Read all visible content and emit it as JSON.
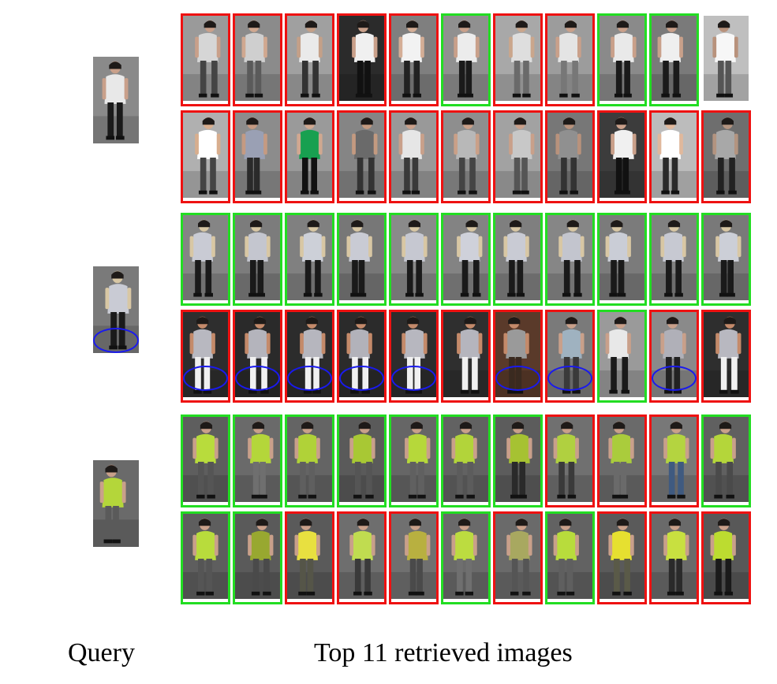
{
  "captions": {
    "query": "Query",
    "results": "Top 11 retrieved images"
  },
  "colors": {
    "correct": "#22dd22",
    "incorrect": "#ee1111",
    "highlight": "#1a1aee"
  },
  "queries": [
    {
      "name": "query-woman-white-dress",
      "palette": [
        "#8a8a8a",
        "#e8e8e8",
        "#1a1a1a",
        "#c9a08a"
      ],
      "ellipse": false,
      "rows": [
        {
          "results": [
            {
              "match": false,
              "palette": [
                "#9a9a9a",
                "#d6d6d6",
                "#444444",
                "#c9a08a"
              ]
            },
            {
              "match": false,
              "palette": [
                "#8b8b8b",
                "#cfcfcf",
                "#5a5a5a",
                "#d0a890"
              ]
            },
            {
              "match": false,
              "palette": [
                "#a0a0a0",
                "#eaeaea",
                "#333333",
                "#c4a088"
              ]
            },
            {
              "match": false,
              "palette": [
                "#2b2b2b",
                "#f0f0f0",
                "#111111",
                "#c9a08a"
              ]
            },
            {
              "match": false,
              "palette": [
                "#7f7f7f",
                "#f2f2f2",
                "#222222",
                "#d4ae96"
              ]
            },
            {
              "match": true,
              "palette": [
                "#909090",
                "#ececec",
                "#1a1a1a",
                "#c9a08a"
              ]
            },
            {
              "match": false,
              "palette": [
                "#a8a8a8",
                "#dedede",
                "#6a6a6a",
                "#caa68c"
              ]
            },
            {
              "match": false,
              "palette": [
                "#9c9c9c",
                "#e4e4e4",
                "#777777",
                "#c9a08a"
              ]
            },
            {
              "match": true,
              "palette": [
                "#8a8a8a",
                "#e9e9e9",
                "#1a1a1a",
                "#c9a08a"
              ]
            },
            {
              "match": true,
              "palette": [
                "#7a7a7a",
                "#efefef",
                "#1b1b1b",
                "#c9a08a"
              ]
            },
            {
              "match": null,
              "palette": [
                "#bfbfbf",
                "#f7f7f7",
                "#555555",
                "#b8927c"
              ]
            }
          ]
        },
        {
          "results": [
            {
              "match": false,
              "palette": [
                "#b0b0b0",
                "#ffffff",
                "#444444",
                "#d8ae8e"
              ]
            },
            {
              "match": false,
              "palette": [
                "#8c8c8c",
                "#9aa0b4",
                "#2a2a2a",
                "#c49a82"
              ]
            },
            {
              "match": false,
              "palette": [
                "#9a9a9a",
                "#18a050",
                "#111111",
                "#d0a890"
              ]
            },
            {
              "match": false,
              "palette": [
                "#858585",
                "#6a6a6a",
                "#333333",
                "#c39a80"
              ]
            },
            {
              "match": false,
              "palette": [
                "#999999",
                "#e6e6e6",
                "#3a3a3a",
                "#c9a08a"
              ]
            },
            {
              "match": false,
              "palette": [
                "#8e8e8e",
                "#b8b8b8",
                "#444444",
                "#caa088"
              ]
            },
            {
              "match": false,
              "palette": [
                "#a2a2a2",
                "#c8c8c8",
                "#555555",
                "#c9a08a"
              ]
            },
            {
              "match": false,
              "palette": [
                "#777777",
                "#909090",
                "#333333",
                "#b8927c"
              ]
            },
            {
              "match": false,
              "palette": [
                "#3c3c3c",
                "#f0f0f0",
                "#111111",
                "#c9a08a"
              ]
            },
            {
              "match": false,
              "palette": [
                "#bcbcbc",
                "#ffffff",
                "#2a2a2a",
                "#e0b89c"
              ]
            },
            {
              "match": false,
              "palette": [
                "#6e6e6e",
                "#a8a8a8",
                "#222222",
                "#b39480"
              ]
            }
          ]
        }
      ]
    },
    {
      "name": "query-woman-floral-dress-hat",
      "palette": [
        "#7a7a7a",
        "#c9cbd4",
        "#1a1a1a",
        "#d8c7a4"
      ],
      "ellipse": true,
      "rows": [
        {
          "results": [
            {
              "match": true,
              "palette": [
                "#858585",
                "#c9cbd4",
                "#1a1a1a",
                "#d8c7a4"
              ],
              "ellipse": false
            },
            {
              "match": true,
              "palette": [
                "#7c7c7c",
                "#c4c6cf",
                "#1a1a1a",
                "#d8c7a4"
              ],
              "ellipse": false
            },
            {
              "match": true,
              "palette": [
                "#808080",
                "#cdd0d8",
                "#1a1a1a",
                "#d8c7a4"
              ],
              "ellipse": false
            },
            {
              "match": true,
              "palette": [
                "#777777",
                "#c9cbd4",
                "#1a1a1a",
                "#d8c7a4"
              ],
              "ellipse": false
            },
            {
              "match": true,
              "palette": [
                "#8a8a8a",
                "#c6c8d1",
                "#1a1a1a",
                "#d8c7a4"
              ],
              "ellipse": false
            },
            {
              "match": true,
              "palette": [
                "#838383",
                "#cfd1da",
                "#1a1a1a",
                "#d8c7a4"
              ],
              "ellipse": false
            },
            {
              "match": true,
              "palette": [
                "#7f7f7f",
                "#c9cbd4",
                "#1a1a1a",
                "#d8c7a4"
              ],
              "ellipse": false
            },
            {
              "match": true,
              "palette": [
                "#868686",
                "#c3c5ce",
                "#1a1a1a",
                "#d8c7a4"
              ],
              "ellipse": false
            },
            {
              "match": true,
              "palette": [
                "#7b7b7b",
                "#cacdd6",
                "#1a1a1a",
                "#d8c7a4"
              ],
              "ellipse": false
            },
            {
              "match": true,
              "palette": [
                "#818181",
                "#c7c9d2",
                "#1a1a1a",
                "#d8c7a4"
              ],
              "ellipse": false
            },
            {
              "match": true,
              "palette": [
                "#797979",
                "#cccfd7",
                "#1a1a1a",
                "#d8c7a4"
              ],
              "ellipse": false
            }
          ]
        },
        {
          "results": [
            {
              "match": false,
              "palette": [
                "#2e2e2e",
                "#b8b8c0",
                "#f0f0f0",
                "#c48a6a"
              ],
              "ellipse": true
            },
            {
              "match": false,
              "palette": [
                "#2a2a2a",
                "#b4b4bc",
                "#f0f0f0",
                "#c48a6a"
              ],
              "ellipse": true
            },
            {
              "match": false,
              "palette": [
                "#2c2c2c",
                "#b6b6be",
                "#f0f0f0",
                "#c48a6a"
              ],
              "ellipse": true
            },
            {
              "match": false,
              "palette": [
                "#2b2b2b",
                "#b2b2ba",
                "#f0f0f0",
                "#c48a6a"
              ],
              "ellipse": true
            },
            {
              "match": false,
              "palette": [
                "#2d2d2d",
                "#b7b7bf",
                "#f0f0f0",
                "#c48a6a"
              ],
              "ellipse": true
            },
            {
              "match": false,
              "palette": [
                "#2f2f2f",
                "#b5b5bd",
                "#f0f0f0",
                "#c48a6a"
              ],
              "ellipse": false
            },
            {
              "match": false,
              "palette": [
                "#5a3a2a",
                "#9a9a9a",
                "#3a2a20",
                "#c48a6a"
              ],
              "ellipse": true
            },
            {
              "match": false,
              "palette": [
                "#7a7a7a",
                "#9fb2c0",
                "#3a3a3a",
                "#c9a08a"
              ],
              "ellipse": true
            },
            {
              "match": true,
              "palette": [
                "#9a9a9a",
                "#e8e8e8",
                "#1a1a1a",
                "#c9a08a"
              ],
              "ellipse": false
            },
            {
              "match": false,
              "palette": [
                "#8a8a8a",
                "#b0b0b8",
                "#222222",
                "#c9a08a"
              ],
              "ellipse": true
            },
            {
              "match": false,
              "palette": [
                "#2e2e2e",
                "#b8b8c0",
                "#f0f0f0",
                "#c48a6a"
              ],
              "ellipse": false
            }
          ]
        }
      ]
    },
    {
      "name": "query-man-green-shirt-bike",
      "palette": [
        "#6a6a6a",
        "#b4d63a",
        "#5a5a5a",
        "#c9a08a"
      ],
      "ellipse": false,
      "rows": [
        {
          "results": [
            {
              "match": true,
              "palette": [
                "#5e5e5e",
                "#b8dc3c",
                "#555555",
                "#c9a08a"
              ]
            },
            {
              "match": true,
              "palette": [
                "#6a6a6a",
                "#b4d63a",
                "#6f6f6f",
                "#c9a08a"
              ]
            },
            {
              "match": true,
              "palette": [
                "#646464",
                "#b0d238",
                "#5f5f5f",
                "#c9a08a"
              ]
            },
            {
              "match": true,
              "palette": [
                "#5a5a5a",
                "#a8c834",
                "#555555",
                "#c9a08a"
              ]
            },
            {
              "match": true,
              "palette": [
                "#666666",
                "#b6d83a",
                "#606060",
                "#c9a08a"
              ]
            },
            {
              "match": true,
              "palette": [
                "#626262",
                "#b2d43a",
                "#5c5c5c",
                "#c9a08a"
              ]
            },
            {
              "match": true,
              "palette": [
                "#5c5c5c",
                "#a6c232",
                "#2a2a2a",
                "#c9a08a"
              ]
            },
            {
              "match": false,
              "palette": [
                "#707070",
                "#b0d040",
                "#3a3a3a",
                "#c9a08a"
              ]
            },
            {
              "match": false,
              "palette": [
                "#6a6a6a",
                "#aacc3c",
                "#6a6a6a",
                "#c9a08a"
              ]
            },
            {
              "match": false,
              "palette": [
                "#787878",
                "#b4d440",
                "#3f5a80",
                "#c9a08a"
              ]
            },
            {
              "match": true,
              "palette": [
                "#606060",
                "#b4d63a",
                "#4a4a4a",
                "#c9a08a"
              ]
            }
          ]
        },
        {
          "results": [
            {
              "match": true,
              "palette": [
                "#5e5e5e",
                "#b8dc3c",
                "#555555",
                "#c9a08a"
              ]
            },
            {
              "match": true,
              "palette": [
                "#5a5a5a",
                "#98a830",
                "#4a4a4a",
                "#c9a08a"
              ]
            },
            {
              "match": false,
              "palette": [
                "#5a5a5a",
                "#e8e040",
                "#555548",
                "#c9a08a"
              ]
            },
            {
              "match": false,
              "palette": [
                "#6e6e6e",
                "#c0dc50",
                "#3a3a3a",
                "#c9a08a"
              ]
            },
            {
              "match": false,
              "palette": [
                "#707070",
                "#b8b040",
                "#4a4a4a",
                "#c9a08a"
              ]
            },
            {
              "match": true,
              "palette": [
                "#6a6a6a",
                "#bcdc40",
                "#6f6f6f",
                "#c9a08a"
              ]
            },
            {
              "match": false,
              "palette": [
                "#6a6a6a",
                "#a8a860",
                "#555555",
                "#c9a08a"
              ]
            },
            {
              "match": true,
              "palette": [
                "#626262",
                "#b8dc3c",
                "#5f5f5f",
                "#c9a08a"
              ]
            },
            {
              "match": false,
              "palette": [
                "#5a5a5a",
                "#e6e030",
                "#5a5a48",
                "#c9a08a"
              ]
            },
            {
              "match": false,
              "palette": [
                "#6a6a6a",
                "#c8e040",
                "#2a2a2a",
                "#c9a08a"
              ]
            },
            {
              "match": false,
              "palette": [
                "#585858",
                "#bcdc30",
                "#1a1a1a",
                "#c9a08a"
              ]
            }
          ]
        }
      ]
    }
  ]
}
